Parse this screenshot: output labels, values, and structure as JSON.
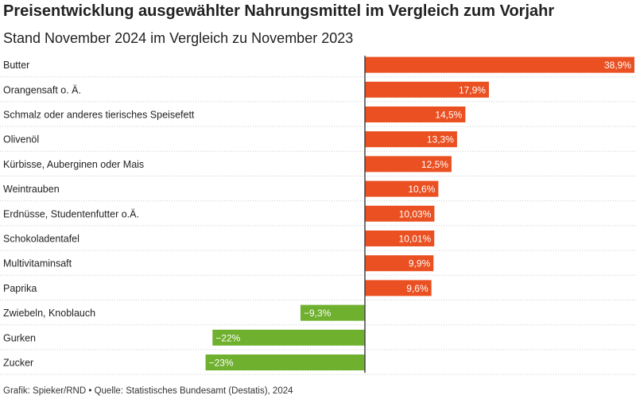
{
  "colors": {
    "positive": "#ea5021",
    "negative": "#6fb02e",
    "axis": "#444444",
    "grid": "#cccccc"
  },
  "chart_data": {
    "type": "bar",
    "orientation": "horizontal",
    "title": "Preisentwicklung ausgewählter Nahrungsmittel im Vergleich zum Vorjahr",
    "subtitle": "Stand November 2024 im Vergleich zu November 2023",
    "unit": "%",
    "xlim": [
      -26,
      44
    ],
    "categories": [
      "Butter",
      "Orangensaft o. Ä.",
      "Schmalz oder anderes tierisches Speisefett",
      "Olivenöl",
      "Kürbisse, Auberginen oder Mais",
      "Weintrauben",
      "Erdnüsse, Studentenfutter o.Ä.",
      "Schokoladentafel",
      "Multivitaminsaft",
      "Paprika",
      "Zwiebeln, Knoblauch",
      "Gurken",
      "Zucker"
    ],
    "values": [
      38.9,
      17.9,
      14.5,
      13.3,
      12.5,
      10.6,
      10.03,
      10.01,
      9.9,
      9.6,
      -9.3,
      -22,
      -23
    ],
    "value_labels": [
      "38,9%",
      "17,9%",
      "14,5%",
      "13,3%",
      "12,5%",
      "10,6%",
      "10,03%",
      "10,01%",
      "9,9%",
      "9,6%",
      "−9,3%",
      "−22%",
      "−23%"
    ],
    "source": "Grafik: Spieker/RND • Quelle: Statistisches Bundesamt (Destatis), 2024"
  }
}
